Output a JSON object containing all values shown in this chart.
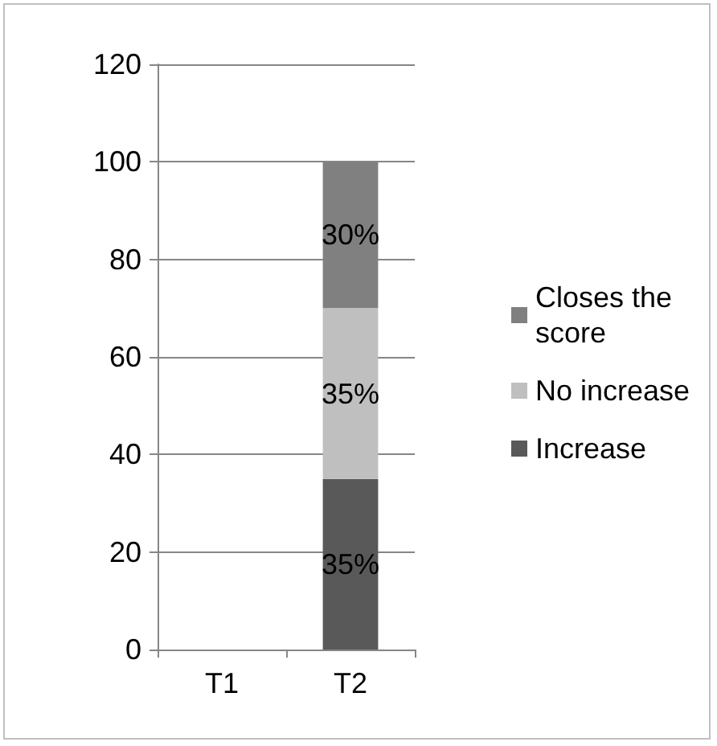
{
  "chart_data": {
    "type": "bar",
    "stacked": true,
    "categories": [
      "T1",
      "T2"
    ],
    "series": [
      {
        "name": "Increase",
        "color": "#595959",
        "values": [
          null,
          35
        ],
        "value_labels": [
          null,
          "35%"
        ]
      },
      {
        "name": "No increase",
        "color": "#bfbfbf",
        "values": [
          null,
          35
        ],
        "value_labels": [
          null,
          "35%"
        ]
      },
      {
        "name": "Closes the score",
        "color": "#808080",
        "values": [
          null,
          30
        ],
        "value_labels": [
          null,
          "30%"
        ]
      }
    ],
    "ylim": [
      0,
      120
    ],
    "yticks": [
      0,
      20,
      40,
      60,
      80,
      100,
      120
    ],
    "grid": "y",
    "legend": "right"
  }
}
